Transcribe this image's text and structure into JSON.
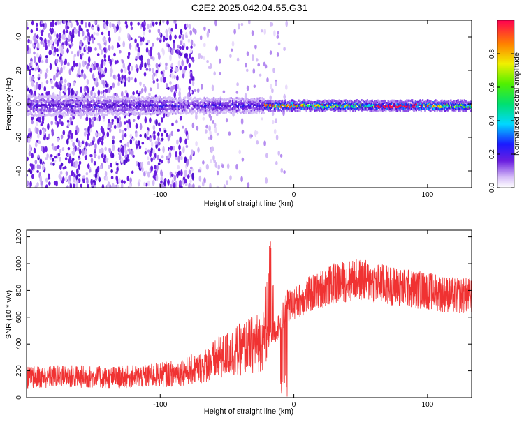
{
  "title": "C2E2.2025.042.04.55.G31",
  "chart_data": [
    {
      "type": "heatmap",
      "xlabel": "Height of straight line (km)",
      "ylabel": "Frequency (Hz)",
      "xlim": [
        -200,
        133
      ],
      "ylim": [
        -50,
        50
      ],
      "xticks": [
        -100,
        0,
        100
      ],
      "yticks": [
        -40,
        -20,
        0,
        20,
        40
      ],
      "grid": false,
      "colorbar": {
        "label": "Normalized spectral amplitude",
        "range": [
          0,
          1
        ],
        "ticks": [
          0.0,
          0.2,
          0.4,
          0.6,
          0.8
        ],
        "tick_labels": [
          "0.0",
          "0.2",
          "0.4",
          "0.6",
          "0.8"
        ],
        "colormap": "rainbow"
      }
    },
    {
      "type": "line",
      "xlabel": "Height of straight line (km)",
      "ylabel": "SNR (10 * v/v)",
      "xlim": [
        -200,
        133
      ],
      "ylim": [
        0,
        1250
      ],
      "xticks": [
        -100,
        0,
        100
      ],
      "yticks": [
        0,
        200,
        400,
        600,
        800,
        1000,
        1200
      ],
      "grid": false,
      "series_color": "#f03232",
      "envelope": {
        "x": [
          -200,
          -170,
          -140,
          -110,
          -90,
          -70,
          -55,
          -40,
          -25,
          -15,
          -10,
          -5,
          0,
          10,
          20,
          30,
          40,
          50,
          60,
          70,
          80,
          90,
          100,
          110,
          120,
          133
        ],
        "y": [
          150,
          160,
          150,
          160,
          180,
          220,
          300,
          360,
          420,
          480,
          560,
          680,
          700,
          760,
          810,
          850,
          870,
          880,
          860,
          840,
          820,
          810,
          800,
          780,
          760,
          760
        ]
      }
    }
  ]
}
